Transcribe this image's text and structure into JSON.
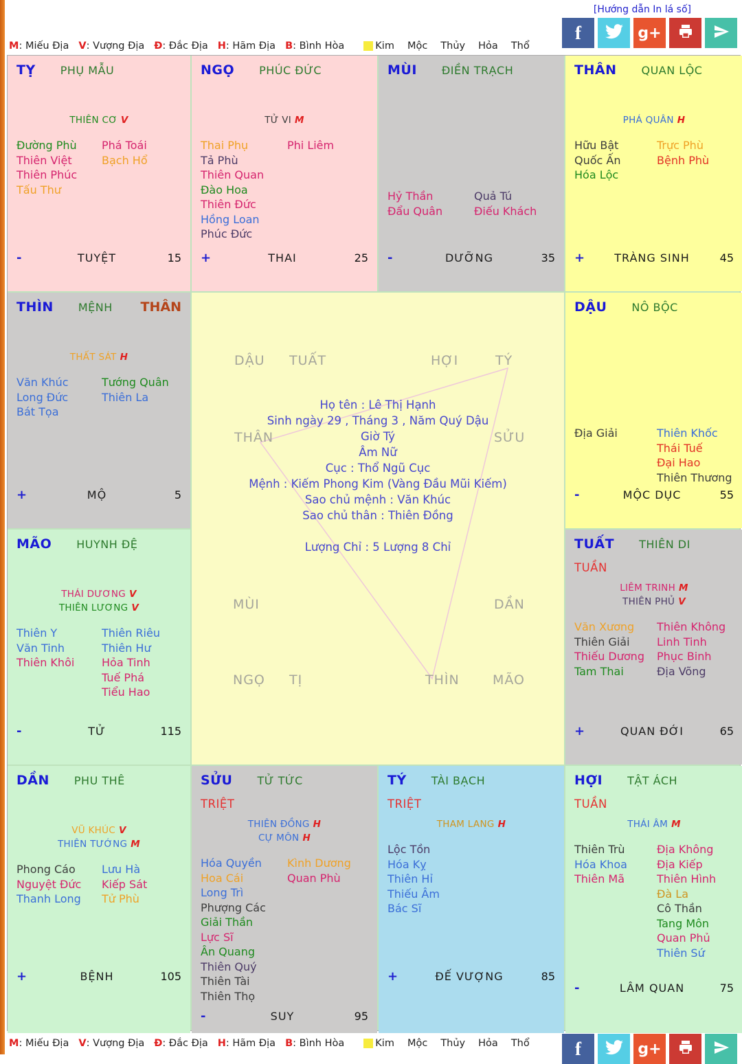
{
  "page": {
    "guide_link": "[Hướng dẫn In lá số]"
  },
  "legend": {
    "grades": [
      {
        "key": "M",
        "label": "Miếu Địa"
      },
      {
        "key": "V",
        "label": "Vượng Địa"
      },
      {
        "key": "Đ",
        "label": "Đắc Địa"
      },
      {
        "key": "H",
        "label": "Hãm Địa"
      },
      {
        "key": "B",
        "label": "Bình Hòa"
      }
    ],
    "elements": [
      {
        "label": "Kim",
        "swatch": "#f7ec3e"
      },
      {
        "label": "Mộc"
      },
      {
        "label": "Thủy"
      },
      {
        "label": "Hỏa"
      },
      {
        "label": "Thổ"
      }
    ]
  },
  "social": [
    {
      "name": "facebook",
      "color": "#44619d"
    },
    {
      "name": "twitter",
      "color": "#55cee5"
    },
    {
      "name": "googleplus",
      "color": "#e8552f"
    },
    {
      "name": "print",
      "color": "#cc3a33"
    },
    {
      "name": "send",
      "color": "#47c0a8"
    }
  ],
  "colors": {
    "green": "#1e8a1e",
    "crimson": "#d5246e",
    "red": "#e23226",
    "orange": "#efa126",
    "gold": "#cf9420",
    "blue": "#3a6ed8",
    "purple": "#4b3a66",
    "black": "#3c3c3c"
  },
  "center": {
    "ring": [
      "DẬU",
      "TUẤT",
      "HỢI",
      "TÝ",
      "THÂN",
      "SỬU",
      "MÙI",
      "DẦN",
      "NGỌ",
      "TỊ",
      "THÌN",
      "MÃO"
    ],
    "info_lines": [
      "Họ tên : Lê Thị Hạnh",
      "Sinh ngày 29 , Tháng 3 , Năm Quý Dậu",
      "Giờ Tý",
      "Âm Nữ",
      "Cục : Thổ Ngũ Cục",
      "Mệnh : Kiếm Phong Kim (Vàng Đầu Mũi Kiếm)",
      "Sao chủ mệnh : Văn Khúc",
      "Sao chủ thân : Thiên Đồng"
    ],
    "weight_line": "Lượng Chỉ : 5 Lượng 8 Chỉ"
  },
  "palaces": [
    {
      "id": "ty",
      "branch": "TỴ",
      "name": "PHỤ MẪU",
      "bg": "pink",
      "special": null,
      "extra": null,
      "mains": [
        {
          "t": "THIÊN CƠ",
          "c": "green",
          "g": "V"
        }
      ],
      "left": [
        [
          "Đường Phù",
          "green"
        ],
        [
          "Thiên Việt",
          "crimson"
        ],
        [
          "Thiên Phúc",
          "crimson"
        ],
        [
          "Tấu Thư",
          "orange"
        ]
      ],
      "right": [
        [
          "Phá Toái",
          "crimson"
        ],
        [
          "Bạch Hổ",
          "orange"
        ]
      ],
      "sign": "-",
      "cycle": "TUYỆT",
      "age": "15"
    },
    {
      "id": "ngo",
      "branch": "NGỌ",
      "name": "PHÚC ĐỨC",
      "bg": "pink",
      "special": null,
      "extra": null,
      "mains": [
        {
          "t": "TỬ VI",
          "c": "black",
          "g": "M"
        }
      ],
      "left": [
        [
          "Thai Phụ",
          "orange"
        ],
        [
          "Tả Phù",
          "purple"
        ],
        [
          "Thiên Quan",
          "crimson"
        ],
        [
          "Đào Hoa",
          "green"
        ],
        [
          "Thiên Đức",
          "crimson"
        ],
        [
          "Hồng Loan",
          "blue"
        ],
        [
          "Phúc Đức",
          "purple"
        ]
      ],
      "right": [
        [
          "Phi Liêm",
          "crimson"
        ]
      ],
      "sign": "+",
      "cycle": "THAI",
      "age": "25"
    },
    {
      "id": "mui",
      "branch": "MÙI",
      "name": "ĐIỀN TRẠCH",
      "bg": "gray",
      "special": null,
      "extra": null,
      "mains": [],
      "left": [
        [
          "Hỷ Thần",
          "crimson"
        ],
        [
          "Đẩu Quân",
          "crimson"
        ]
      ],
      "right": [
        [
          "Quả Tú",
          "purple"
        ],
        [
          "Điếu Khách",
          "crimson"
        ]
      ],
      "sign": "-",
      "cycle": "DƯỠNG",
      "age": "35"
    },
    {
      "id": "than",
      "branch": "THÂN",
      "name": "QUAN LỘC",
      "bg": "yellow",
      "special": null,
      "extra": null,
      "mains": [
        {
          "t": "PHÁ QUÂN",
          "c": "blue",
          "g": "H"
        }
      ],
      "left": [
        [
          "Hữu Bật",
          "black"
        ],
        [
          "Quốc Ấn",
          "black"
        ],
        [
          "Hóa Lộc",
          "green"
        ]
      ],
      "right": [
        [
          "Trực Phù",
          "orange"
        ],
        [
          "Bệnh Phù",
          "red"
        ]
      ],
      "sign": "+",
      "cycle": "TRÀNG SINH",
      "age": "45"
    },
    {
      "id": "thin",
      "branch": "THÌN",
      "name": "MỆNH",
      "bg": "gray",
      "special": null,
      "extra": "THÂN",
      "mains": [
        {
          "t": "THẤT SÁT",
          "c": "orange",
          "g": "H"
        }
      ],
      "left": [
        [
          "Văn Khúc",
          "blue"
        ],
        [
          "Long Đức",
          "blue"
        ],
        [
          "Bát Tọa",
          "blue"
        ]
      ],
      "right": [
        [
          "Tướng Quân",
          "green"
        ],
        [
          "Thiên La",
          "blue"
        ]
      ],
      "sign": "+",
      "cycle": "MỘ",
      "age": "5"
    },
    {
      "id": "dau",
      "branch": "DẬU",
      "name": "NÔ BỘC",
      "bg": "yellow",
      "special": null,
      "extra": null,
      "mains": [],
      "left": [
        [
          "Địa Giải",
          "black"
        ]
      ],
      "right": [
        [
          "Thiên Khốc",
          "blue"
        ],
        [
          "Thái Tuế",
          "red"
        ],
        [
          "Đại Hao",
          "red"
        ],
        [
          "Thiên Thương",
          "black"
        ]
      ],
      "sign": "-",
      "cycle": "MỘC DỤC",
      "age": "55"
    },
    {
      "id": "mao",
      "branch": "MÃO",
      "name": "HUYNH ĐỆ",
      "bg": "green",
      "special": null,
      "extra": null,
      "mains": [
        {
          "t": "THÁI DƯƠNG",
          "c": "crimson",
          "g": "V"
        },
        {
          "t": "THIÊN LƯƠNG",
          "c": "green",
          "g": "V"
        }
      ],
      "left": [
        [
          "Thiên Y",
          "blue"
        ],
        [
          "Văn Tinh",
          "blue"
        ],
        [
          "Thiên Khôi",
          "crimson"
        ]
      ],
      "right": [
        [
          "Thiên Riêu",
          "blue"
        ],
        [
          "Thiên Hư",
          "blue"
        ],
        [
          "Hỏa Tinh",
          "crimson"
        ],
        [
          "Tuế Phá",
          "crimson"
        ],
        [
          "Tiểu Hao",
          "crimson"
        ]
      ],
      "sign": "-",
      "cycle": "TỬ",
      "age": "115"
    },
    {
      "id": "tuat",
      "branch": "TUẤT",
      "name": "THIÊN DI",
      "bg": "gray",
      "special": "TUẦN",
      "extra": null,
      "mains": [
        {
          "t": "LIÊM TRINH",
          "c": "crimson",
          "g": "M"
        },
        {
          "t": "THIÊN PHỦ",
          "c": "purple",
          "g": "V"
        }
      ],
      "left": [
        [
          "Văn Xương",
          "orange"
        ],
        [
          "Thiên Giải",
          "black"
        ],
        [
          "Thiếu Dương",
          "crimson"
        ],
        [
          "Tam Thai",
          "green"
        ]
      ],
      "right": [
        [
          "Thiên Không",
          "crimson"
        ],
        [
          "Linh Tinh",
          "crimson"
        ],
        [
          "Phục Binh",
          "crimson"
        ],
        [
          "Địa Võng",
          "purple"
        ]
      ],
      "sign": "+",
      "cycle": "QUAN ĐỚI",
      "age": "65"
    },
    {
      "id": "dan",
      "branch": "DẦN",
      "name": "PHU THÊ",
      "bg": "green",
      "special": null,
      "extra": null,
      "mains": [
        {
          "t": "VŨ KHÚC",
          "c": "orange",
          "g": "V"
        },
        {
          "t": "THIÊN TƯỚNG",
          "c": "blue",
          "g": "M"
        }
      ],
      "left": [
        [
          "Phong Cáo",
          "black"
        ],
        [
          "Nguyệt Đức",
          "crimson"
        ],
        [
          "Thanh Long",
          "blue"
        ]
      ],
      "right": [
        [
          "Lưu Hà",
          "blue"
        ],
        [
          "Kiếp Sát",
          "crimson"
        ],
        [
          "Tử Phù",
          "orange"
        ]
      ],
      "sign": "+",
      "cycle": "BỆNH",
      "age": "105"
    },
    {
      "id": "suu",
      "branch": "SỬU",
      "name": "TỬ TỨC",
      "bg": "gray",
      "special": "TRIỆT",
      "extra": null,
      "mains": [
        {
          "t": "THIÊN ĐỒNG",
          "c": "blue",
          "g": "H"
        },
        {
          "t": "CỰ MÔN",
          "c": "blue",
          "g": "H"
        }
      ],
      "left": [
        [
          "Hóa Quyền",
          "blue"
        ],
        [
          "Hoa Cái",
          "orange"
        ],
        [
          "Long Trì",
          "blue"
        ],
        [
          "Phượng Các",
          "black"
        ],
        [
          "Giải Thần",
          "green"
        ],
        [
          "Lực Sĩ",
          "crimson"
        ],
        [
          "Ân Quang",
          "green"
        ],
        [
          "Thiên Quý",
          "purple"
        ],
        [
          "Thiên Tài",
          "black"
        ],
        [
          "Thiên Thọ",
          "black"
        ]
      ],
      "right": [
        [
          "Kình Dương",
          "orange"
        ],
        [
          "Quan Phù",
          "crimson"
        ]
      ],
      "sign": "-",
      "cycle": "SUY",
      "age": "95"
    },
    {
      "id": "tyrat",
      "branch": "TÝ",
      "name": "TÀI BẠCH",
      "bg": "blue",
      "special": "TRIỆT",
      "extra": null,
      "mains": [
        {
          "t": "THAM LANG",
          "c": "gold",
          "g": "H"
        }
      ],
      "left": [
        [
          "Lộc Tồn",
          "purple"
        ],
        [
          "Hóa Kỵ",
          "blue"
        ],
        [
          "Thiên Hỉ",
          "blue"
        ],
        [
          "Thiếu Âm",
          "blue"
        ],
        [
          "Bác Sĩ",
          "blue"
        ]
      ],
      "right": [],
      "sign": "+",
      "cycle": "ĐẾ VƯỢNG",
      "age": "85"
    },
    {
      "id": "hoi",
      "branch": "HỢI",
      "name": "TẬT ÁCH",
      "bg": "green",
      "special": "TUẦN",
      "extra": null,
      "mains": [
        {
          "t": "THÁI ÂM",
          "c": "blue",
          "g": "M"
        }
      ],
      "left": [
        [
          "Thiên Trù",
          "black"
        ],
        [
          "Hóa Khoa",
          "blue"
        ],
        [
          "Thiên Mã",
          "crimson"
        ]
      ],
      "right": [
        [
          "Địa Không",
          "crimson"
        ],
        [
          "Địa Kiếp",
          "crimson"
        ],
        [
          "Thiên Hình",
          "crimson"
        ],
        [
          "Đà La",
          "gold"
        ],
        [
          "Cô Thần",
          "black"
        ],
        [
          "Tang Môn",
          "green"
        ],
        [
          "Quan Phủ",
          "crimson"
        ],
        [
          "Thiên Sứ",
          "blue"
        ]
      ],
      "sign": "-",
      "cycle": "LÂM QUAN",
      "age": "75"
    }
  ]
}
